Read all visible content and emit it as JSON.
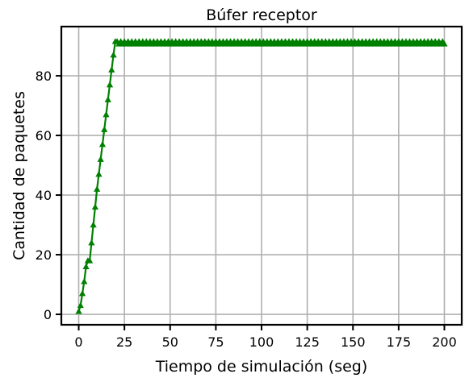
{
  "chart_data": {
    "type": "line",
    "title": "Búfer receptor",
    "xlabel": "Tiempo de simulación (seg)",
    "ylabel": "Cantidad de paquetes",
    "xlim": [
      -9.5,
      209.5
    ],
    "ylim": [
      -3.5,
      96.5
    ],
    "xticks": [
      0,
      25,
      50,
      75,
      100,
      125,
      150,
      175,
      200
    ],
    "yticks": [
      0,
      20,
      40,
      60,
      80
    ],
    "grid": true,
    "legend": "none",
    "series": [
      {
        "color": "#008000",
        "marker": "triangle-up",
        "points": [
          [
            0,
            1
          ],
          [
            1,
            3
          ],
          [
            2,
            7
          ],
          [
            3,
            11
          ],
          [
            4,
            16
          ],
          [
            5,
            18
          ],
          [
            6,
            18
          ],
          [
            7,
            24
          ],
          [
            8,
            30
          ],
          [
            9,
            36
          ],
          [
            10,
            42
          ],
          [
            11,
            47
          ],
          [
            12,
            52
          ],
          [
            13,
            57
          ],
          [
            14,
            62
          ],
          [
            15,
            67
          ],
          [
            16,
            72
          ],
          [
            17,
            77
          ],
          [
            18,
            82
          ],
          [
            19,
            87
          ],
          [
            20,
            91.5
          ]
        ],
        "plateau": {
          "x_start": 20,
          "x_end": 200,
          "step": 1,
          "values": [
            91.5,
            90.7
          ]
        }
      }
    ]
  }
}
